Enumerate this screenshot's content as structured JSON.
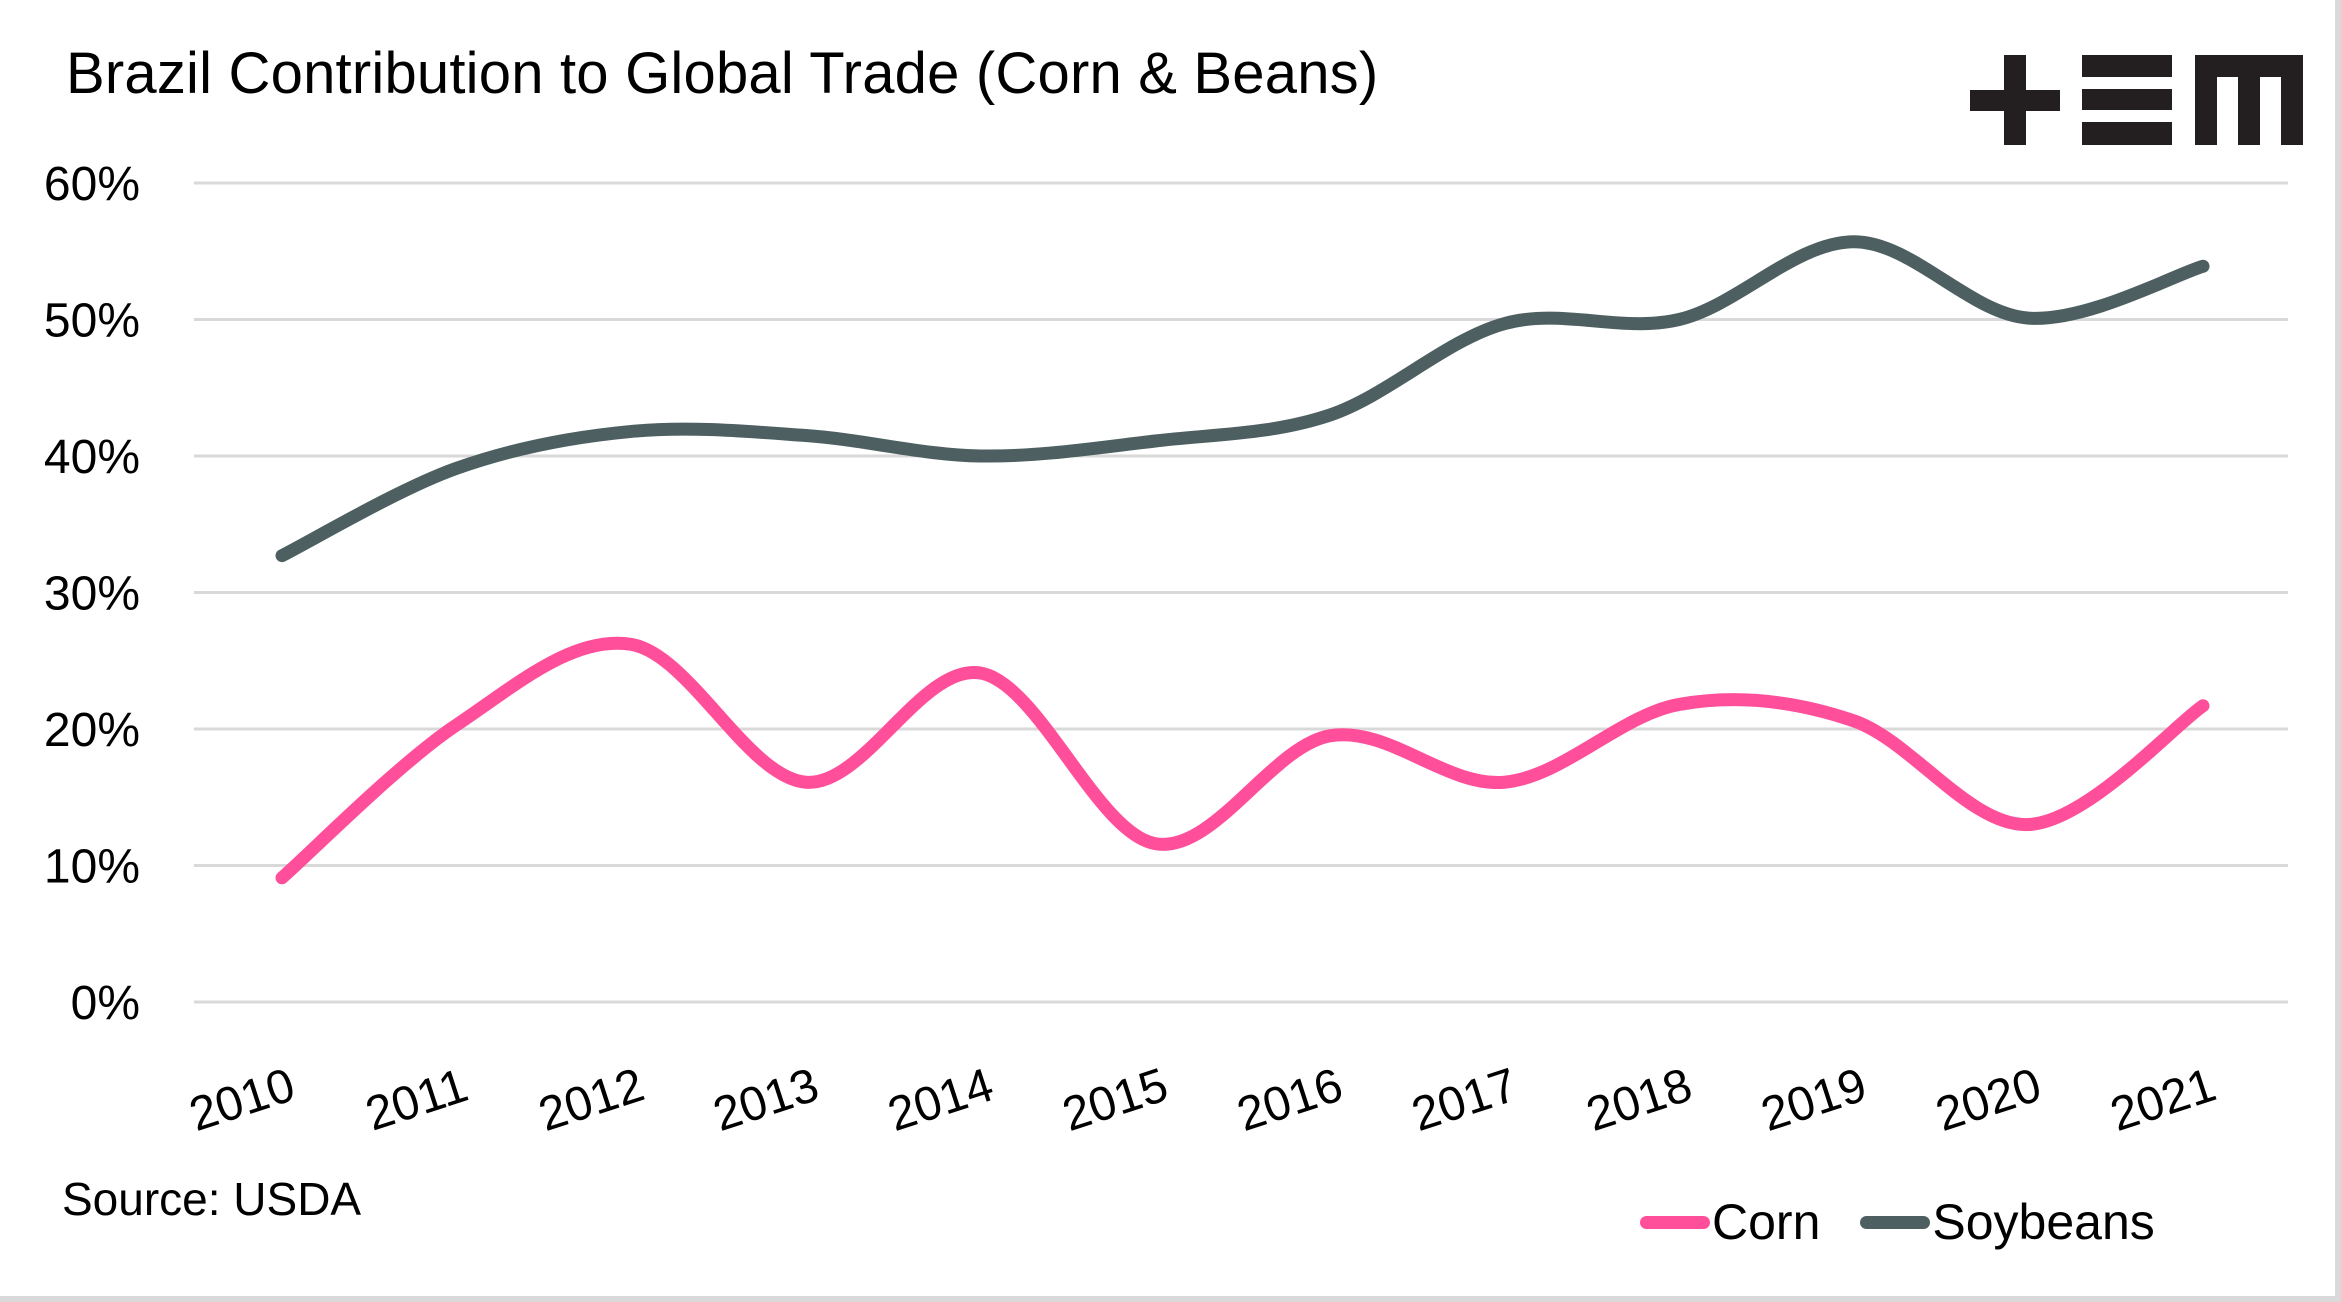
{
  "header": {
    "title": "Brazil Contribution to Global Trade (Corn & Beans)",
    "logo": "tem-logo"
  },
  "footer": {
    "source": "Source: USDA"
  },
  "colors": {
    "corn": "#FF4F9A",
    "soybeans": "#4D5F60",
    "grid": "#D9D9D9",
    "text": "#000000"
  },
  "chart_data": {
    "type": "line",
    "title": "Brazil Contribution to Global Trade (Corn & Beans)",
    "xlabel": "",
    "ylabel": "",
    "categories": [
      "2010",
      "2011",
      "2012",
      "2013",
      "2014",
      "2015",
      "2016",
      "2017",
      "2018",
      "2019",
      "2020",
      "2021"
    ],
    "y_ticks": [
      "0%",
      "10%",
      "20%",
      "30%",
      "40%",
      "50%",
      "60%"
    ],
    "y_tick_values": [
      0,
      10,
      20,
      30,
      40,
      50,
      60
    ],
    "ylim": [
      0,
      60
    ],
    "grid": true,
    "smooth": true,
    "legend": {
      "position": "bottom-right",
      "entries": [
        "Corn",
        "Soybeans"
      ]
    },
    "series": [
      {
        "name": "Corn",
        "color": "#FF4F9A",
        "values": [
          9.1,
          20.3,
          26.2,
          16.1,
          24.1,
          11.6,
          19.5,
          16.1,
          21.8,
          20.6,
          13.0,
          21.7
        ]
      },
      {
        "name": "Soybeans",
        "color": "#4D5F60",
        "values": [
          32.7,
          39.1,
          41.8,
          41.5,
          40.0,
          41.1,
          43.0,
          49.7,
          50.0,
          55.7,
          50.1,
          53.9
        ]
      }
    ],
    "source": "Source: USDA"
  }
}
